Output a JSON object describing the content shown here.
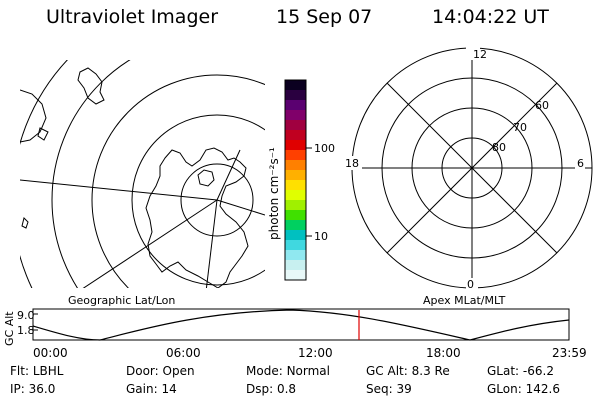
{
  "header": {
    "title": "Ultraviolet Imager",
    "date": "15 Sep 07",
    "time": "14:04:22 UT"
  },
  "colorbar": {
    "unit_label": "photon cm⁻²s⁻¹",
    "tick_labels": [
      "100",
      "10"
    ],
    "colors": [
      "#0b0020",
      "#2a0040",
      "#5a0070",
      "#80006a",
      "#a00040",
      "#c00020",
      "#e00000",
      "#ff4000",
      "#ff8000",
      "#ffb000",
      "#ffe000",
      "#e0ff00",
      "#a0f000",
      "#40e000",
      "#00d060",
      "#00c0c0",
      "#40d8e0",
      "#90e8f0",
      "#c8f0f0",
      "#e8f8f8"
    ]
  },
  "left_panel": {
    "caption": "Geographic Lat/Lon"
  },
  "right_panel": {
    "caption": "Apex MLat/MLT",
    "mlt_labels": {
      "top": "12",
      "left": "18",
      "right": "6",
      "bottom": "0"
    },
    "lat_labels": [
      "60",
      "70",
      "80"
    ]
  },
  "altitude_strip": {
    "ylabel": "GC Alt",
    "y_ticks": [
      "9.0",
      "1.8"
    ],
    "x_ticks": [
      "00:00",
      "06:00",
      "12:00",
      "18:00",
      "23:59"
    ],
    "current_time_marker_color": "#e00000"
  },
  "info": {
    "row1": [
      {
        "label": "Flt:",
        "value": "LBHL"
      },
      {
        "label": "Door:",
        "value": "Open"
      },
      {
        "label": "Mode:",
        "value": "Normal"
      },
      {
        "label": "GC Alt:",
        "value": "8.3 Re"
      },
      {
        "label": "GLat:",
        "value": "-66.2"
      }
    ],
    "row2": [
      {
        "label": "IP:",
        "value": "36.0"
      },
      {
        "label": "Gain:",
        "value": "14"
      },
      {
        "label": "Dsp:",
        "value": "0.8"
      },
      {
        "label": "Seq:",
        "value": "39"
      },
      {
        "label": "GLon:",
        "value": "142.6"
      }
    ]
  }
}
